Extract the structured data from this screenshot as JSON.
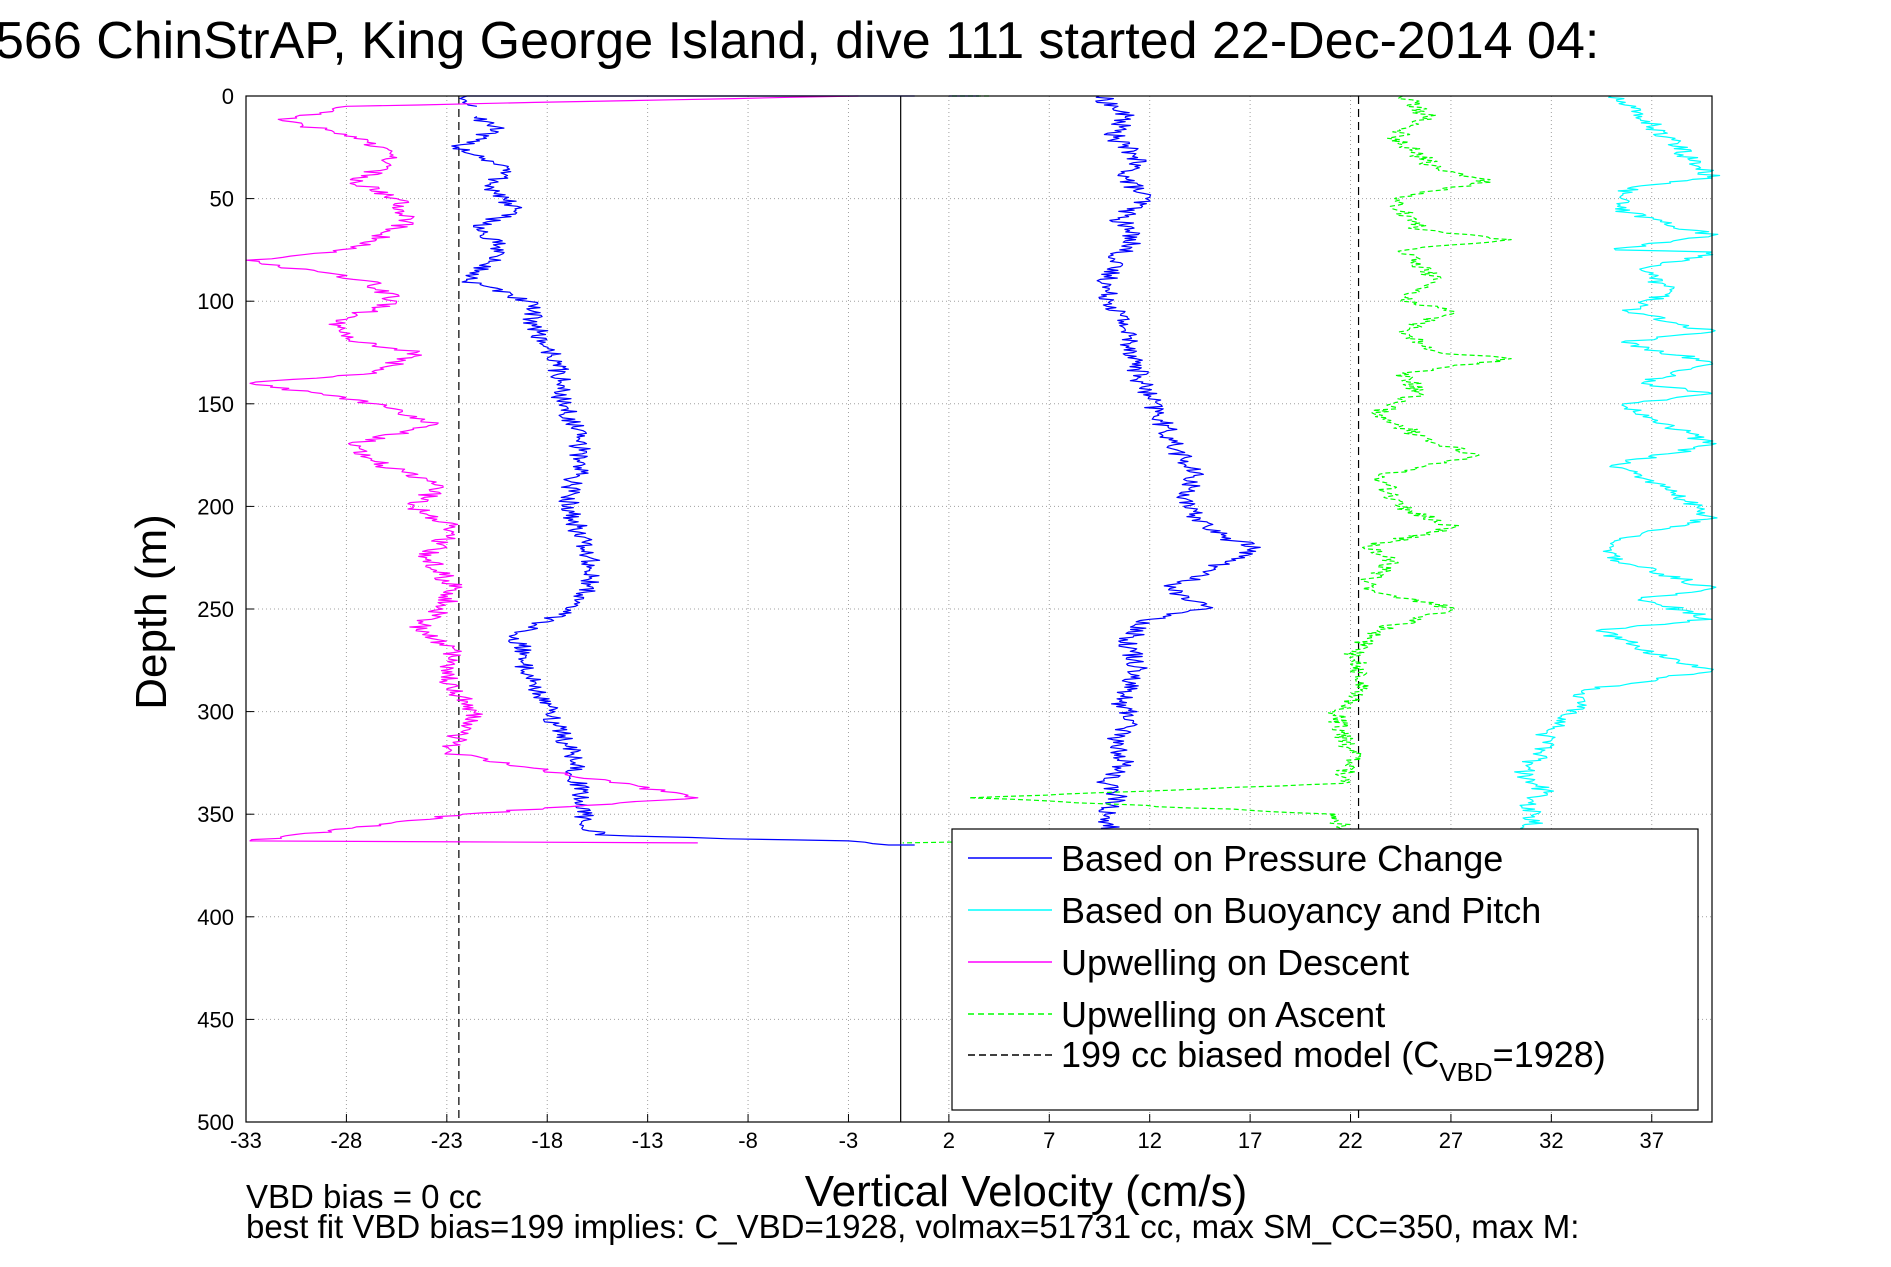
{
  "chart_data": {
    "type": "line",
    "title": "566 ChinStrAP, King George Island, dive 111 started 22-Dec-2014 04:",
    "xlabel": "Vertical Velocity (cm/s)",
    "ylabel": "Depth (m)",
    "xlim": [
      -33,
      40
    ],
    "ylim": [
      500,
      0
    ],
    "y_reversed": true,
    "grid": true,
    "grid_style": "dotted",
    "x_ticks": [
      -33,
      -28,
      -23,
      -18,
      -13,
      -8,
      -3,
      2,
      7,
      12,
      17,
      22,
      27,
      32,
      37
    ],
    "y_ticks": [
      0,
      50,
      100,
      150,
      200,
      250,
      300,
      350,
      400,
      450,
      500
    ],
    "reference_lines": [
      {
        "kind": "vertical",
        "x": -0.4,
        "style": "solid",
        "color": "#000000"
      },
      {
        "kind": "vertical",
        "x": -22.4,
        "style": "dashed",
        "color": "#000000"
      },
      {
        "kind": "vertical",
        "x": 22.4,
        "style": "dashed",
        "color": "#000000"
      }
    ],
    "series": [
      {
        "name": "Based on Pressure Change",
        "color": "#0000ff",
        "style": "solid",
        "segments": [
          {
            "x": [
              0.3,
              -3,
              -22,
              -21.5
            ],
            "depth": [
              0,
              0,
              0,
              5
            ]
          },
          {
            "x": [
              -21.5,
              -20.5,
              -22.4,
              -20,
              -20.8,
              -19.6,
              -21.5,
              -20.2,
              -22,
              -19,
              -18.5,
              -17.5,
              -17.2,
              -16.5,
              -16.3,
              -17,
              -16.5,
              -15.8,
              -16.2,
              -17.8,
              -19.5,
              -19.2,
              -18.5,
              -17.3,
              -16.6,
              -16.4,
              -16.2,
              -15.6,
              -9,
              -3,
              -1,
              0.3
            ],
            "depth": [
              10,
              15,
              25,
              35,
              45,
              55,
              65,
              75,
              90,
              100,
              115,
              130,
              150,
              165,
              180,
              195,
              210,
              230,
              245,
              255,
              262,
              275,
              290,
              310,
              325,
              340,
              350,
              360,
              362,
              363,
              365,
              365
            ]
          },
          {
            "x": [
              2,
              3.5
            ],
            "depth": [
              0,
              0
            ]
          },
          {
            "x": [
              9.5,
              10.8,
              10.2,
              11.4,
              10.8,
              11.8,
              10.5,
              11.3,
              10.2,
              9.8,
              10.7,
              11.2,
              11.6,
              12.4,
              13.2,
              14.2,
              13.7,
              15.6,
              17.5,
              15.2,
              13,
              14.8,
              12,
              10.9,
              11.5,
              10.5,
              11.2,
              10.2,
              10.8,
              9.8,
              10.4,
              9.8,
              10.1
            ],
            "depth": [
              0,
              10,
              20,
              30,
              40,
              50,
              60,
              70,
              80,
              95,
              110,
              125,
              140,
              155,
              170,
              185,
              200,
              215,
              220,
              230,
              240,
              250,
              255,
              265,
              280,
              295,
              305,
              315,
              325,
              335,
              342,
              350,
              360
            ]
          }
        ]
      },
      {
        "name": "Based on Buoyancy and Pitch",
        "color": "#00ffff",
        "style": "solid",
        "segments": [
          {
            "x": [
              35,
              36.5,
              40,
              35.8,
              35.2,
              40,
              35.2,
              40,
              36.5,
              38,
              35.8,
              40,
              35.5,
              40,
              36.5,
              40,
              35.6,
              40,
              35,
              36.5,
              40,
              35.8,
              34.8,
              40,
              36.5,
              40,
              34.5,
              36.5,
              40,
              33.5,
              33.2,
              31.8,
              31.5,
              30.5,
              31.8,
              30.8,
              31.2,
              30.8
            ],
            "depth": [
              0,
              10,
              40,
              45,
              55,
              68,
              75,
              76,
              85,
              95,
              105,
              115,
              120,
              130,
              140,
              145,
              150,
              170,
              180,
              185,
              205,
              215,
              225,
              240,
              245,
              255,
              260,
              270,
              280,
              290,
              300,
              310,
              320,
              330,
              340,
              342,
              350,
              360
            ]
          }
        ]
      },
      {
        "name": "Upwelling on Descent",
        "color": "#ff00ff",
        "style": "solid",
        "segments": [
          {
            "x": [
              -2.5,
              -28,
              -31.2,
              -27.5,
              -25.5,
              -27.5,
              -25.5,
              -24.8,
              -26.5,
              -28.5,
              -33,
              -27,
              -25.5,
              -28.5,
              -27.4,
              -24.5,
              -26.5,
              -32.8,
              -26.5,
              -23.5,
              -27.8,
              -26.2,
              -23.2,
              -24.7,
              -22.6,
              -24,
              -22.6,
              -23.2,
              -24.5,
              -22.6,
              -23,
              -21.6,
              -23,
              -10.5,
              -22.2,
              -32.8,
              -10.5
            ],
            "depth": [
              0,
              5,
              12,
              20,
              30,
              42,
              50,
              60,
              70,
              76,
              80,
              90,
              100,
              110,
              120,
              125,
              135,
              140,
              150,
              160,
              170,
              180,
              190,
              200,
              210,
              225,
              240,
              250,
              260,
              270,
              285,
              300,
              320,
              342,
              350,
              363,
              364
            ]
          }
        ]
      },
      {
        "name": "Upwelling on Ascent",
        "color": "#00ff00",
        "style": "dashed",
        "segments": [
          {
            "x": [
              4,
              2
            ],
            "depth": [
              0,
              0
            ]
          },
          {
            "x": [
              24.6,
              25.8,
              24.2,
              26.2,
              29,
              26.6,
              24.2,
              25.4,
              30,
              24.8,
              26.2,
              24.5,
              27.2,
              24.4,
              26.4,
              30,
              24.6,
              25.4,
              23.2,
              26.4,
              28.4,
              23.4,
              24.4,
              27.2,
              22.6,
              24.2,
              22.6,
              27.2,
              23.4,
              22.2,
              22.6,
              21.2,
              22.1,
              21.6,
              3,
              21.3,
              21.6,
              -0.3
            ],
            "depth": [
              0,
              10,
              20,
              35,
              42,
              45,
              50,
              65,
              70,
              75,
              90,
              100,
              105,
              115,
              125,
              128,
              135,
              145,
              155,
              170,
              175,
              185,
              200,
              210,
              220,
              225,
              240,
              250,
              260,
              270,
              290,
              300,
              320,
              335,
              342,
              350,
              360,
              364
            ]
          }
        ]
      },
      {
        "name": "199 cc biased model (C_VBD=1928)",
        "color": "#000000",
        "style": "dashed",
        "segments": []
      }
    ]
  },
  "legend": {
    "placement": "bottom-right",
    "items": [
      {
        "text": "Based on Pressure Change",
        "color": "#0000ff",
        "style": "solid"
      },
      {
        "text": "Based on Buoyancy and Pitch",
        "color": "#00ffff",
        "style": "solid"
      },
      {
        "text": "Upwelling on Descent",
        "color": "#ff00ff",
        "style": "solid"
      },
      {
        "text": "Upwelling on Ascent",
        "color": "#00ff00",
        "style": "dashed"
      },
      {
        "text": "199 cc biased model (C",
        "sub": "VBD",
        "tail": "=1928)",
        "color": "#000000",
        "style": "dashed"
      }
    ]
  },
  "footnotes": {
    "line1": "VBD bias = 0 cc",
    "line2": "best fit VBD bias=199 implies: C_VBD=1928, volmax=51731 cc, max SM_CC=350, max M:"
  }
}
